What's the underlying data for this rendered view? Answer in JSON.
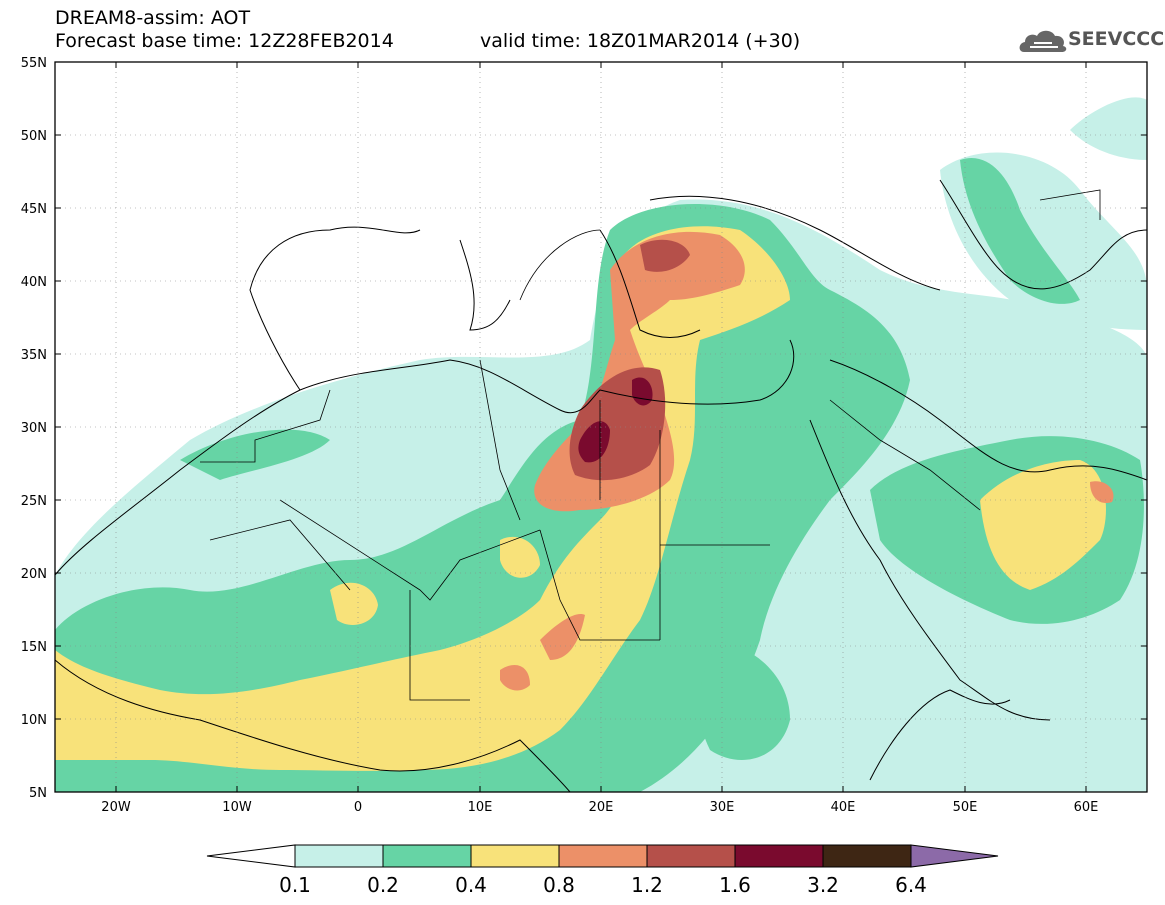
{
  "header": {
    "title": "DREAM8-assim: AOT",
    "base_time": "Forecast base time: 12Z28FEB2014",
    "valid_time": "valid time: 18Z01MAR2014 (+30)"
  },
  "logo": {
    "text": "SEEVCCC",
    "icon": "cloud-icon"
  },
  "map": {
    "lon_range": [
      -25,
      65
    ],
    "lat_range": [
      5,
      55
    ],
    "lon_ticks": [
      "20W",
      "10W",
      "0",
      "10E",
      "20E",
      "30E",
      "40E",
      "50E",
      "60E"
    ],
    "lat_ticks": [
      "55N",
      "50N",
      "45N",
      "40N",
      "35N",
      "30N",
      "25N",
      "20N",
      "15N",
      "10N",
      "5N"
    ],
    "gridlines": "dotted"
  },
  "colorbar": {
    "labels": [
      "0.1",
      "0.2",
      "0.4",
      "0.8",
      "1.2",
      "1.6",
      "3.2",
      "6.4"
    ],
    "colors": [
      "#ffffff",
      "#c6f0e8",
      "#66d4a5",
      "#f8e27a",
      "#ec9068",
      "#b5504a",
      "#7a0a2e",
      "#3e2614",
      "#8c6aa8"
    ]
  },
  "legend_colors": {
    "c01": "#c6f0e8",
    "c02": "#66d4a5",
    "c04": "#f8e27a",
    "c08": "#ec9068",
    "c12": "#b5504a",
    "c16": "#7a0a2e"
  }
}
